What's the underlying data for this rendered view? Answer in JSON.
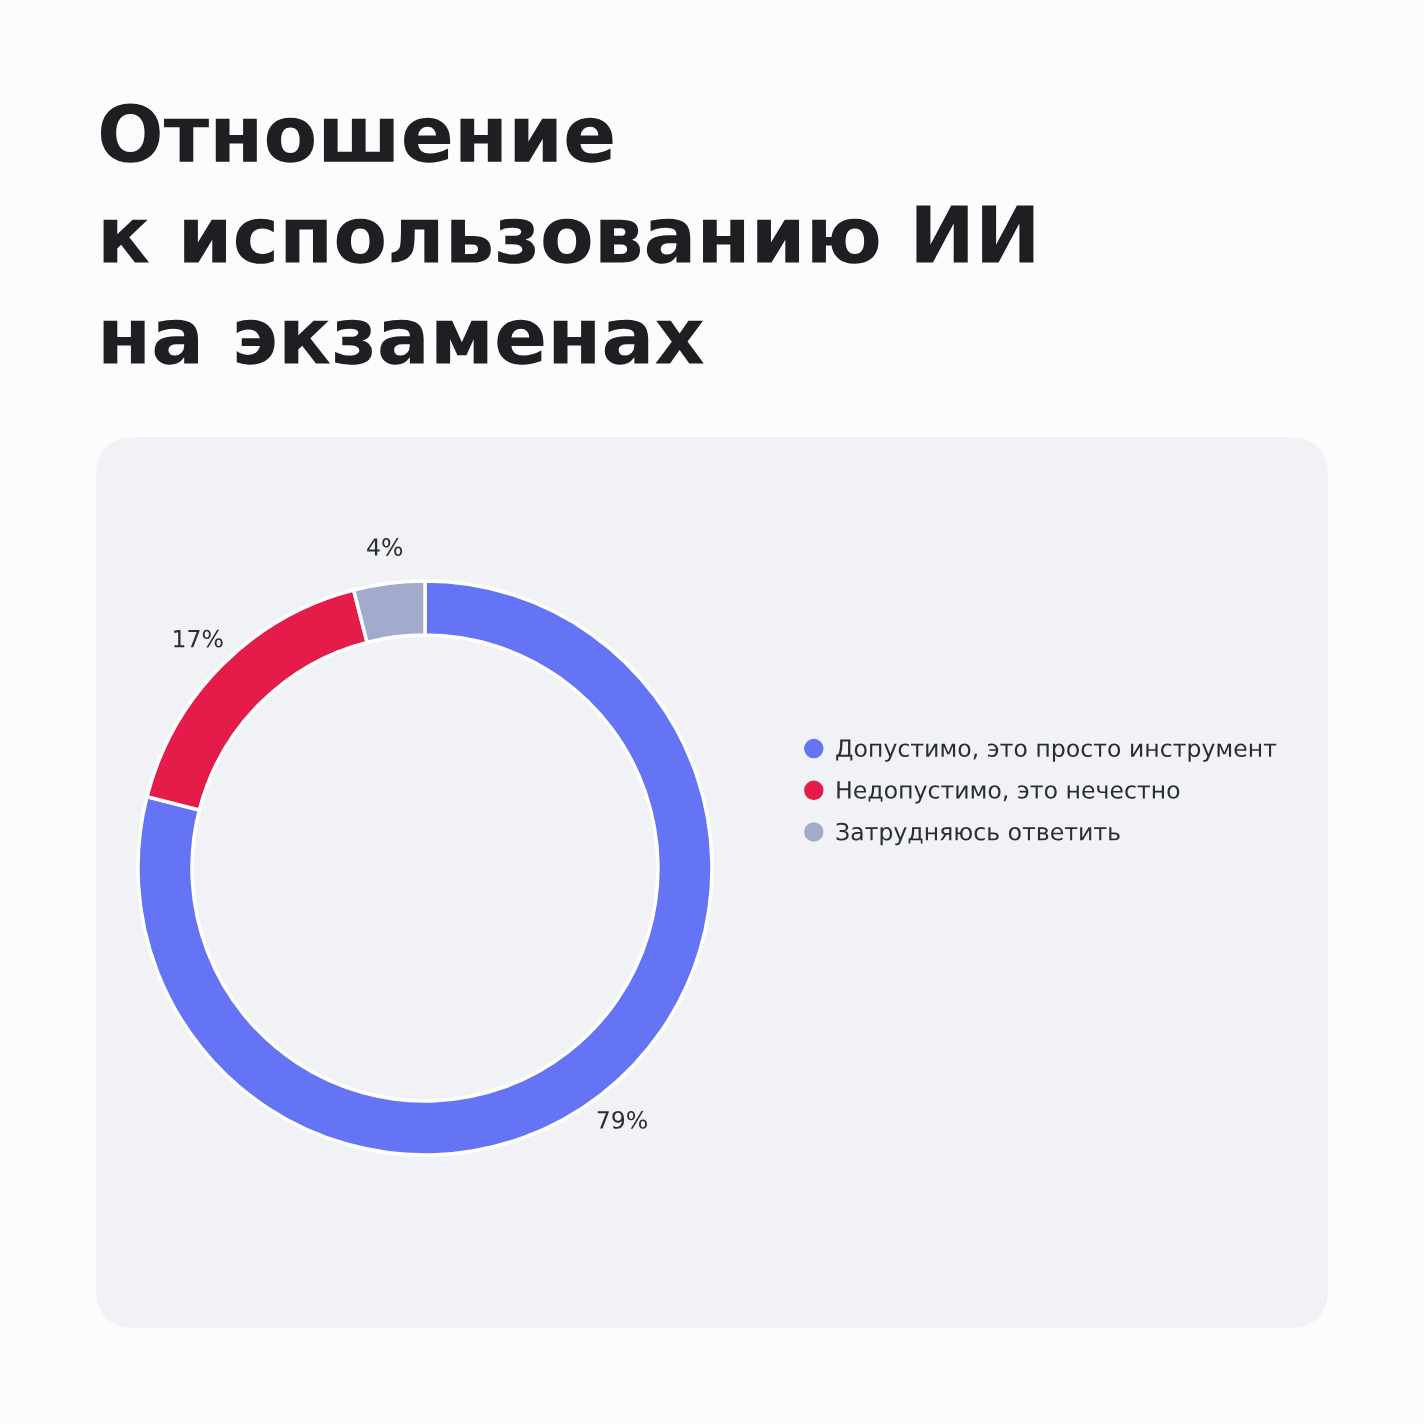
{
  "chart_data": {
    "type": "donut",
    "title": "Отношение\nк использованию ИИ\nна экзаменах",
    "categories": [
      "Допустимо, это просто инструмент",
      "Недопустимо, это нечестно",
      "Затрудняюсь ответить"
    ],
    "values": [
      79,
      17,
      4
    ],
    "colors": [
      "#6574f5",
      "#e51b4a",
      "#a3abcc"
    ],
    "value_labels": [
      "79%",
      "17%",
      "4%"
    ],
    "legend": "right"
  }
}
